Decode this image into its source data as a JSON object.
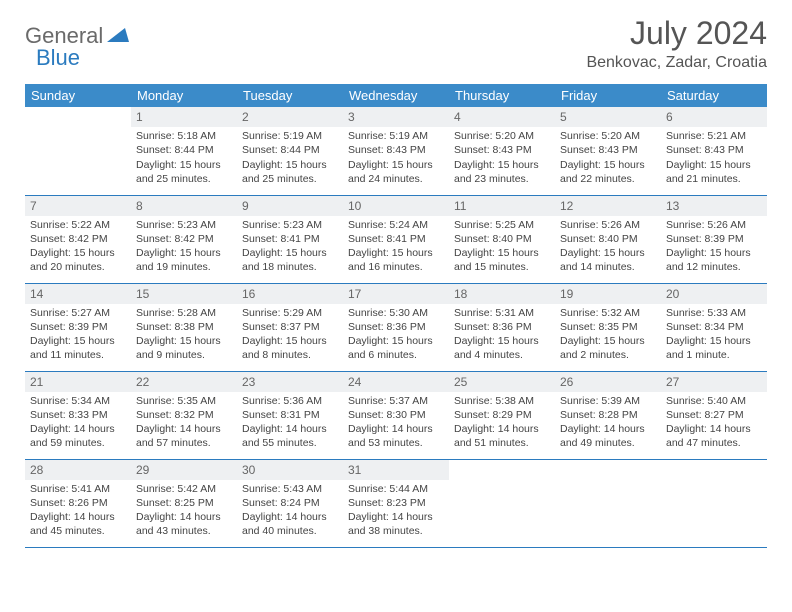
{
  "brand": {
    "part1": "General",
    "part2": "Blue"
  },
  "title": "July 2024",
  "location": "Benkovac, Zadar, Croatia",
  "colors": {
    "header_bg": "#3b8bc9",
    "header_text": "#ffffff",
    "daynum_bg": "#eef0f2",
    "border": "#2b7bbf",
    "brand_gray": "#6a6a6a",
    "brand_blue": "#2b7bbf"
  },
  "weekdays": [
    "Sunday",
    "Monday",
    "Tuesday",
    "Wednesday",
    "Thursday",
    "Friday",
    "Saturday"
  ],
  "weeks": [
    [
      {
        "day": "",
        "sunrise": "",
        "sunset": "",
        "daylight": ""
      },
      {
        "day": "1",
        "sunrise": "Sunrise: 5:18 AM",
        "sunset": "Sunset: 8:44 PM",
        "daylight": "Daylight: 15 hours and 25 minutes."
      },
      {
        "day": "2",
        "sunrise": "Sunrise: 5:19 AM",
        "sunset": "Sunset: 8:44 PM",
        "daylight": "Daylight: 15 hours and 25 minutes."
      },
      {
        "day": "3",
        "sunrise": "Sunrise: 5:19 AM",
        "sunset": "Sunset: 8:43 PM",
        "daylight": "Daylight: 15 hours and 24 minutes."
      },
      {
        "day": "4",
        "sunrise": "Sunrise: 5:20 AM",
        "sunset": "Sunset: 8:43 PM",
        "daylight": "Daylight: 15 hours and 23 minutes."
      },
      {
        "day": "5",
        "sunrise": "Sunrise: 5:20 AM",
        "sunset": "Sunset: 8:43 PM",
        "daylight": "Daylight: 15 hours and 22 minutes."
      },
      {
        "day": "6",
        "sunrise": "Sunrise: 5:21 AM",
        "sunset": "Sunset: 8:43 PM",
        "daylight": "Daylight: 15 hours and 21 minutes."
      }
    ],
    [
      {
        "day": "7",
        "sunrise": "Sunrise: 5:22 AM",
        "sunset": "Sunset: 8:42 PM",
        "daylight": "Daylight: 15 hours and 20 minutes."
      },
      {
        "day": "8",
        "sunrise": "Sunrise: 5:23 AM",
        "sunset": "Sunset: 8:42 PM",
        "daylight": "Daylight: 15 hours and 19 minutes."
      },
      {
        "day": "9",
        "sunrise": "Sunrise: 5:23 AM",
        "sunset": "Sunset: 8:41 PM",
        "daylight": "Daylight: 15 hours and 18 minutes."
      },
      {
        "day": "10",
        "sunrise": "Sunrise: 5:24 AM",
        "sunset": "Sunset: 8:41 PM",
        "daylight": "Daylight: 15 hours and 16 minutes."
      },
      {
        "day": "11",
        "sunrise": "Sunrise: 5:25 AM",
        "sunset": "Sunset: 8:40 PM",
        "daylight": "Daylight: 15 hours and 15 minutes."
      },
      {
        "day": "12",
        "sunrise": "Sunrise: 5:26 AM",
        "sunset": "Sunset: 8:40 PM",
        "daylight": "Daylight: 15 hours and 14 minutes."
      },
      {
        "day": "13",
        "sunrise": "Sunrise: 5:26 AM",
        "sunset": "Sunset: 8:39 PM",
        "daylight": "Daylight: 15 hours and 12 minutes."
      }
    ],
    [
      {
        "day": "14",
        "sunrise": "Sunrise: 5:27 AM",
        "sunset": "Sunset: 8:39 PM",
        "daylight": "Daylight: 15 hours and 11 minutes."
      },
      {
        "day": "15",
        "sunrise": "Sunrise: 5:28 AM",
        "sunset": "Sunset: 8:38 PM",
        "daylight": "Daylight: 15 hours and 9 minutes."
      },
      {
        "day": "16",
        "sunrise": "Sunrise: 5:29 AM",
        "sunset": "Sunset: 8:37 PM",
        "daylight": "Daylight: 15 hours and 8 minutes."
      },
      {
        "day": "17",
        "sunrise": "Sunrise: 5:30 AM",
        "sunset": "Sunset: 8:36 PM",
        "daylight": "Daylight: 15 hours and 6 minutes."
      },
      {
        "day": "18",
        "sunrise": "Sunrise: 5:31 AM",
        "sunset": "Sunset: 8:36 PM",
        "daylight": "Daylight: 15 hours and 4 minutes."
      },
      {
        "day": "19",
        "sunrise": "Sunrise: 5:32 AM",
        "sunset": "Sunset: 8:35 PM",
        "daylight": "Daylight: 15 hours and 2 minutes."
      },
      {
        "day": "20",
        "sunrise": "Sunrise: 5:33 AM",
        "sunset": "Sunset: 8:34 PM",
        "daylight": "Daylight: 15 hours and 1 minute."
      }
    ],
    [
      {
        "day": "21",
        "sunrise": "Sunrise: 5:34 AM",
        "sunset": "Sunset: 8:33 PM",
        "daylight": "Daylight: 14 hours and 59 minutes."
      },
      {
        "day": "22",
        "sunrise": "Sunrise: 5:35 AM",
        "sunset": "Sunset: 8:32 PM",
        "daylight": "Daylight: 14 hours and 57 minutes."
      },
      {
        "day": "23",
        "sunrise": "Sunrise: 5:36 AM",
        "sunset": "Sunset: 8:31 PM",
        "daylight": "Daylight: 14 hours and 55 minutes."
      },
      {
        "day": "24",
        "sunrise": "Sunrise: 5:37 AM",
        "sunset": "Sunset: 8:30 PM",
        "daylight": "Daylight: 14 hours and 53 minutes."
      },
      {
        "day": "25",
        "sunrise": "Sunrise: 5:38 AM",
        "sunset": "Sunset: 8:29 PM",
        "daylight": "Daylight: 14 hours and 51 minutes."
      },
      {
        "day": "26",
        "sunrise": "Sunrise: 5:39 AM",
        "sunset": "Sunset: 8:28 PM",
        "daylight": "Daylight: 14 hours and 49 minutes."
      },
      {
        "day": "27",
        "sunrise": "Sunrise: 5:40 AM",
        "sunset": "Sunset: 8:27 PM",
        "daylight": "Daylight: 14 hours and 47 minutes."
      }
    ],
    [
      {
        "day": "28",
        "sunrise": "Sunrise: 5:41 AM",
        "sunset": "Sunset: 8:26 PM",
        "daylight": "Daylight: 14 hours and 45 minutes."
      },
      {
        "day": "29",
        "sunrise": "Sunrise: 5:42 AM",
        "sunset": "Sunset: 8:25 PM",
        "daylight": "Daylight: 14 hours and 43 minutes."
      },
      {
        "day": "30",
        "sunrise": "Sunrise: 5:43 AM",
        "sunset": "Sunset: 8:24 PM",
        "daylight": "Daylight: 14 hours and 40 minutes."
      },
      {
        "day": "31",
        "sunrise": "Sunrise: 5:44 AM",
        "sunset": "Sunset: 8:23 PM",
        "daylight": "Daylight: 14 hours and 38 minutes."
      },
      {
        "day": "",
        "sunrise": "",
        "sunset": "",
        "daylight": ""
      },
      {
        "day": "",
        "sunrise": "",
        "sunset": "",
        "daylight": ""
      },
      {
        "day": "",
        "sunrise": "",
        "sunset": "",
        "daylight": ""
      }
    ]
  ]
}
